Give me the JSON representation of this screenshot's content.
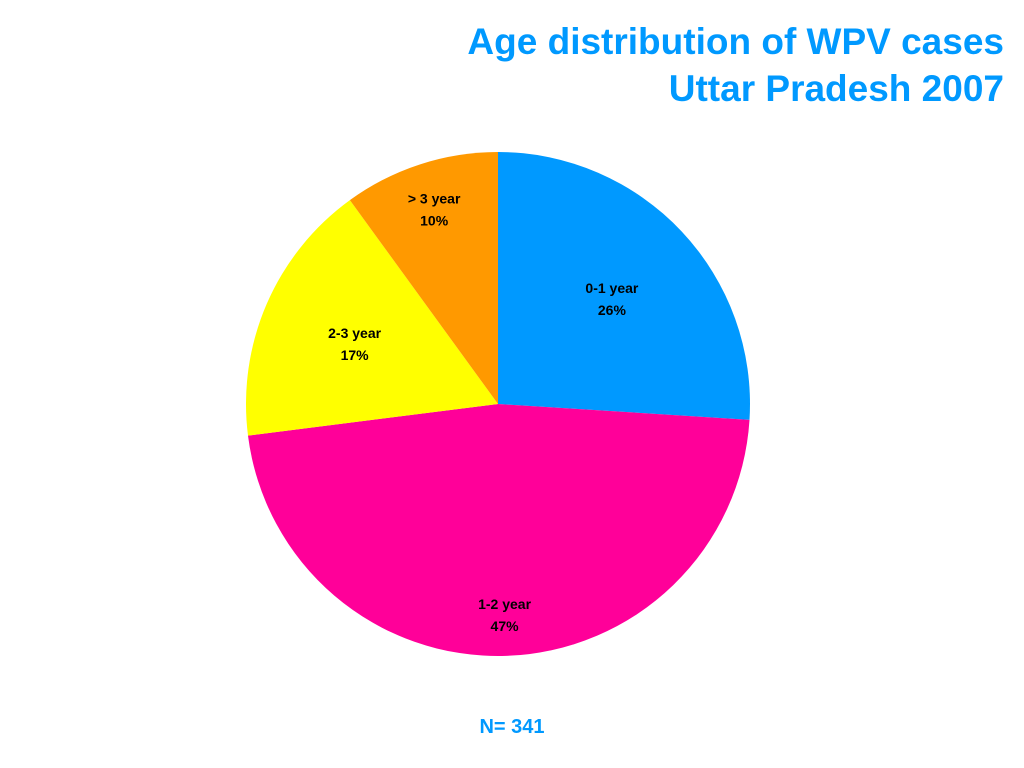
{
  "chart_data": {
    "type": "pie",
    "title_lines": [
      "Age distribution of WPV cases",
      "Uttar Pradesh 2007"
    ],
    "slices": [
      {
        "label": "0-1 year",
        "value": 26,
        "value_label": "26%",
        "color": "#0099ff"
      },
      {
        "label": "1-2 year",
        "value": 47,
        "value_label": "47%",
        "color": "#ff0099"
      },
      {
        "label": "2-3 year",
        "value": 17,
        "value_label": "17%",
        "color": "#ffff00"
      },
      {
        "label": "> 3 year",
        "value": 10,
        "value_label": "10%",
        "color": "#ff9900"
      }
    ],
    "start_angle": "12 o'clock",
    "direction": "clockwise",
    "footnote": "N= 341"
  },
  "colors": {
    "title": "#0099ff",
    "footnote": "#0099ff",
    "background": "#ffffff"
  }
}
